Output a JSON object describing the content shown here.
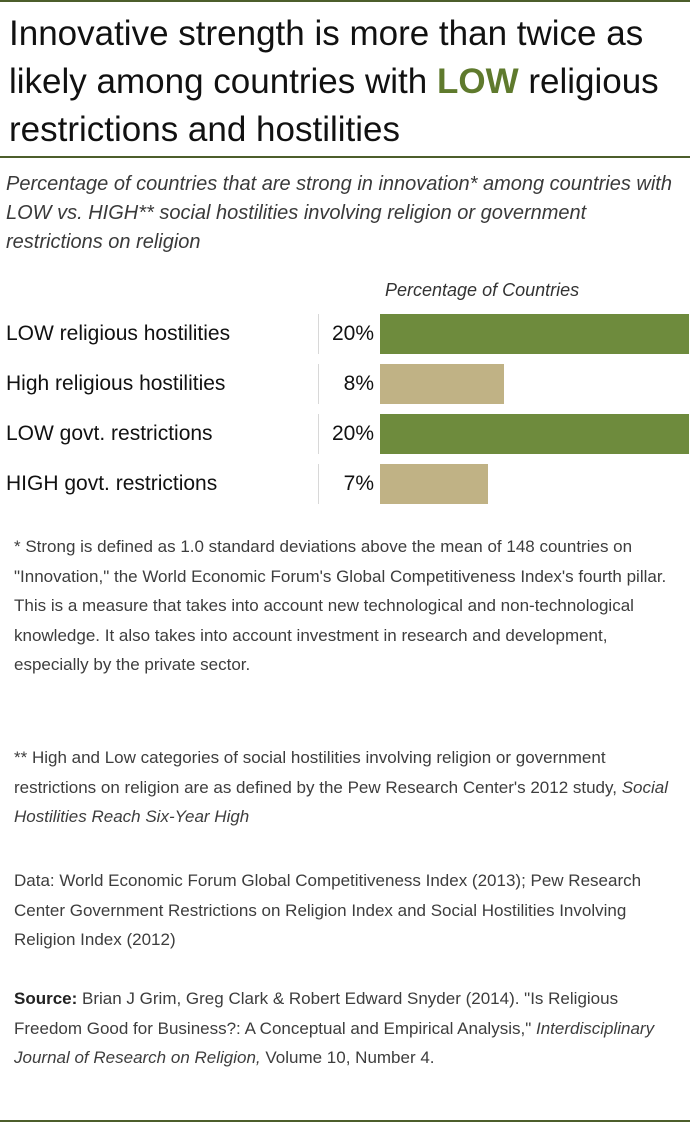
{
  "header": {
    "title_pre": "Innovative strength is more than twice as likely among countries with ",
    "title_highlight": "LOW",
    "title_post": " religious restrictions and hostilities",
    "subtitle": "Percentage of countries that are strong in innovation* among countries with LOW vs. HIGH** social hostilities involving religion or government restrictions on religion"
  },
  "colors": {
    "low": "#6e8b3d",
    "high": "#c0b285",
    "rule": "#4c5e2b"
  },
  "chart_data": {
    "type": "bar",
    "orientation": "horizontal",
    "title": "Innovative strength is more than twice as likely among countries with LOW religious restrictions and hostilities",
    "axis_title": "Percentage of Countries",
    "categories": [
      "LOW religious hostilities",
      "High religious hostilities",
      "LOW govt. restrictions",
      "HIGH govt. restrictions"
    ],
    "values": [
      20,
      8,
      20,
      7
    ],
    "value_labels": [
      "20%",
      "8%",
      "20%",
      "7%"
    ],
    "category_level": [
      "low",
      "high",
      "low",
      "high"
    ],
    "xlim": [
      0,
      20
    ]
  },
  "notes": {
    "note1": "* Strong is defined as 1.0 standard deviations above the mean of 148 countries on \"Innovation,\" the World Economic Forum's Global Competitiveness Index's  fourth pillar. This is a measure that takes into account new technological and non-technological knowledge. It also takes into account investment in research and development, especially by the private sector.",
    "note2_pre": "** High and Low categories of social hostilities involving religion or government restrictions on religion are as defined by the Pew Research Center's 2012 study, ",
    "note2_italic": "Social Hostilities Reach Six-Year High",
    "data": "Data: World Economic Forum Global Competitiveness Index (2013); Pew Research Center Government Restrictions on Religion Index and Social Hostilities Involving Religion Index (2012)",
    "source_label": "Source:",
    "source_pre": " Brian J Grim, Greg Clark & Robert Edward Snyder (2014). \"Is Religious Freedom Good for Business?: A Conceptual and Empirical Analysis,\" ",
    "source_italic": "Interdisciplinary Journal of Research on Religion,",
    "source_post": " Volume 10, Number 4."
  }
}
